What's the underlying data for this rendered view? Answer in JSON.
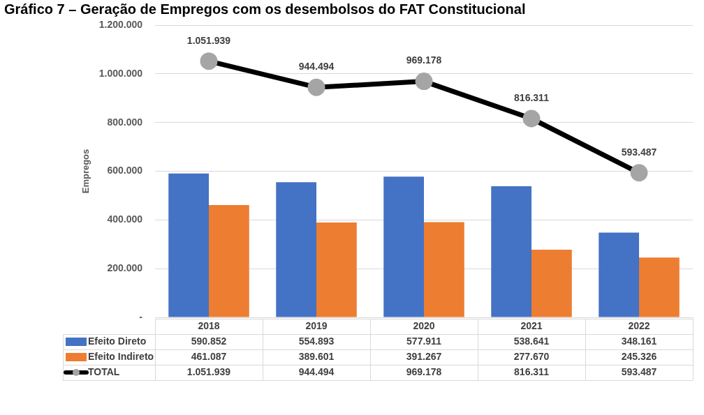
{
  "chart_data": {
    "type": "bar",
    "title": "Gráfico 7 – Geração de Empregos com os desembolsos do FAT Constitucional",
    "ylabel": "Empregos",
    "categories": [
      "2018",
      "2019",
      "2020",
      "2021",
      "2022"
    ],
    "series": [
      {
        "name": "Efeito Direto",
        "color": "#4472c4",
        "values": [
          590852,
          554893,
          577911,
          538641,
          348161
        ],
        "value_labels": [
          "590.852",
          "554.893",
          "577.911",
          "538.641",
          "348.161"
        ]
      },
      {
        "name": "Efeito Indireto",
        "color": "#ed7d31",
        "values": [
          461087,
          389601,
          391267,
          277670,
          245326
        ],
        "value_labels": [
          "461.087",
          "389.601",
          "391.267",
          "277.670",
          "245.326"
        ]
      },
      {
        "name": "TOTAL",
        "type": "line",
        "color": "#000000",
        "marker": "circle",
        "values": [
          1051939,
          944494,
          969178,
          816311,
          593487
        ],
        "value_labels": [
          "1.051.939",
          "944.494",
          "969.178",
          "816.311",
          "593.487"
        ]
      }
    ],
    "ylim": [
      0,
      1200000
    ],
    "yticks": [
      {
        "value": 0,
        "label": "-"
      },
      {
        "value": 200000,
        "label": "200.000"
      },
      {
        "value": 400000,
        "label": "400.000"
      },
      {
        "value": 600000,
        "label": "600.000"
      },
      {
        "value": 800000,
        "label": "800.000"
      },
      {
        "value": 1000000,
        "label": "1.000.000"
      },
      {
        "value": 1200000,
        "label": "1.200.000"
      }
    ],
    "grid": "y",
    "legend": "bottom"
  }
}
